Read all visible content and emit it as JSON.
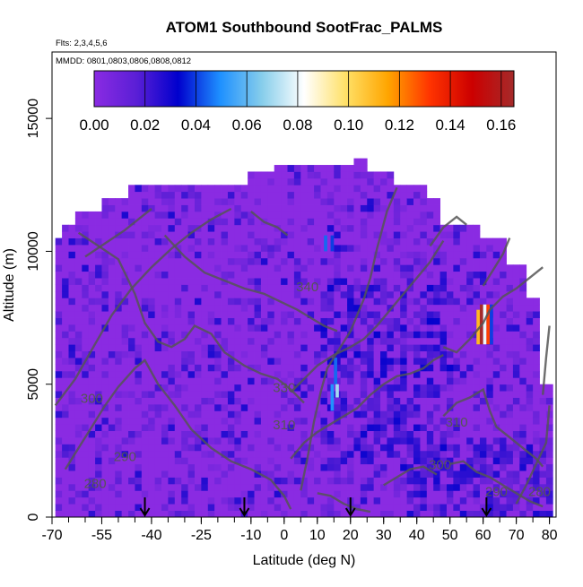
{
  "chart_data": {
    "type": "heatmap",
    "title": "ATOM1 Southbound SootFrac_PALMS",
    "flights_label": "Flts: 2,3,4,5,6",
    "dates_label": "MMDD: 0801,0803,0806,0808,0812",
    "xlabel": "Latitude (deg N)",
    "ylabel": "Altitude (m)",
    "xlim": [
      -70,
      82
    ],
    "ylim": [
      0,
      17500
    ],
    "x_ticks": [
      "-70",
      "-55",
      "-40",
      "-25",
      "-10",
      "0",
      "10",
      "20",
      "30",
      "40",
      "50",
      "60",
      "70",
      "80"
    ],
    "y_ticks": [
      "0",
      "5000",
      "10000",
      "15000"
    ],
    "colorbar": {
      "range": [
        0,
        0.165
      ],
      "ticks": [
        "0.00",
        "0.02",
        "0.04",
        "0.06",
        "0.08",
        "0.10",
        "0.12",
        "0.14",
        "0.16"
      ],
      "colors": [
        "#8a2be2",
        "#5b1fd6",
        "#0000cd",
        "#1e90ff",
        "#87ceeb",
        "#ffffff",
        "#ffe066",
        "#ffa500",
        "#ff3300",
        "#cc0000",
        "#a52a2a"
      ]
    },
    "arrows_latitude": [
      -42,
      -12,
      20,
      61
    ],
    "potential_temperature_contour_labels": [
      {
        "label": "280",
        "lat": -57,
        "alt": 1100
      },
      {
        "label": "290",
        "lat": -48,
        "alt": 2100
      },
      {
        "label": "300",
        "lat": 47,
        "alt": 1800
      },
      {
        "label": "300",
        "lat": -58,
        "alt": 4300
      },
      {
        "label": "310",
        "lat": 0,
        "alt": 3300
      },
      {
        "label": "310",
        "lat": 52,
        "alt": 3400
      },
      {
        "label": "330",
        "lat": 0,
        "alt": 4700
      },
      {
        "label": "340",
        "lat": 7,
        "alt": 8500
      },
      {
        "label": "290",
        "lat": 64,
        "alt": 800
      },
      {
        "label": "280",
        "lat": 77,
        "alt": 800
      }
    ]
  }
}
